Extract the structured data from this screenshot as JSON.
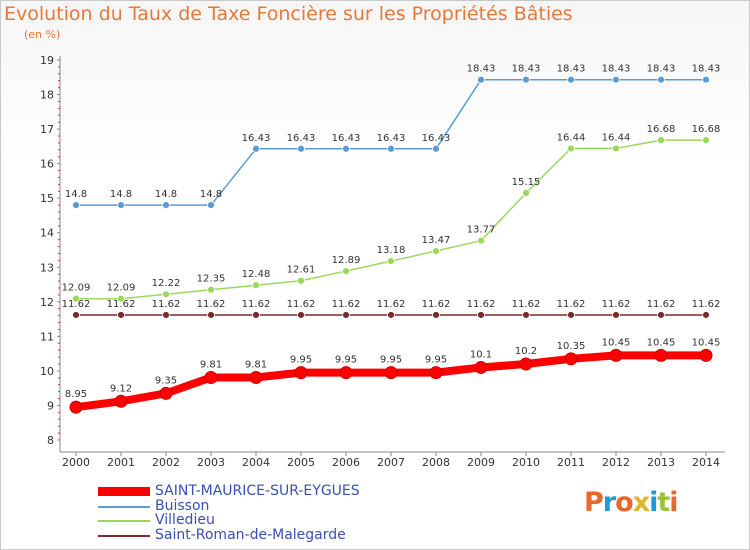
{
  "title": "Evolution du Taux de Taxe Foncière sur les Propriétés Bâties",
  "subtitle": "(en %)",
  "logo": {
    "text": "Proxiti",
    "colors": [
      "#e8672d",
      "#1e9ad6",
      "#e8672d",
      "#e0b52c",
      "#1e9ad6",
      "#9bc43c",
      "#e8672d"
    ]
  },
  "chart_data": {
    "type": "line",
    "title": "Evolution du Taux de Taxe Foncière sur les Propriétés Bâties",
    "ylabel": "(en %)",
    "x": [
      "2000",
      "2001",
      "2002",
      "2003",
      "2004",
      "2005",
      "2006",
      "2007",
      "2008",
      "2009",
      "2010",
      "2011",
      "2012",
      "2013",
      "2014"
    ],
    "ylim": [
      8,
      19
    ],
    "yticks": [
      "8",
      "9",
      "10",
      "11",
      "12",
      "13",
      "14",
      "15",
      "16",
      "17",
      "18",
      "19"
    ],
    "grid": false,
    "legend_position": "bottom-left",
    "series": [
      {
        "name": "SAINT-MAURICE-SUR-EYGUES",
        "color": "#ff0000",
        "width": 8,
        "values": [
          8.95,
          9.12,
          9.35,
          9.81,
          9.81,
          9.95,
          9.95,
          9.95,
          9.95,
          10.1,
          10.2,
          10.35,
          10.45,
          10.45,
          10.45
        ],
        "labels": [
          "8.95",
          "9.12",
          "9.35",
          "9.81",
          "9.81",
          "9.95",
          "9.95",
          "9.95",
          "9.95",
          "10.1",
          "10.2",
          "10.35",
          "10.45",
          "10.45",
          "10.45"
        ]
      },
      {
        "name": "Buisson",
        "color": "#5b9bd5",
        "width": 1.5,
        "values": [
          14.8,
          14.8,
          14.8,
          14.8,
          16.43,
          16.43,
          16.43,
          16.43,
          16.43,
          18.43,
          18.43,
          18.43,
          18.43,
          18.43,
          18.43
        ],
        "labels": [
          "14.8",
          "14.8",
          "14.8",
          "14.8",
          "16.43",
          "16.43",
          "16.43",
          "16.43",
          "16.43",
          "18.43",
          "18.43",
          "18.43",
          "18.43",
          "18.43",
          "18.43"
        ]
      },
      {
        "name": "Villedieu",
        "color": "#9ad85a",
        "width": 1.5,
        "values": [
          12.09,
          12.09,
          12.22,
          12.35,
          12.48,
          12.61,
          12.89,
          13.18,
          13.47,
          13.77,
          15.15,
          16.44,
          16.44,
          16.68,
          16.68
        ],
        "labels": [
          "12.09",
          "12.09",
          "12.22",
          "12.35",
          "12.48",
          "12.61",
          "12.89",
          "13.18",
          "13.47",
          "13.77",
          "15.15",
          "16.44",
          "16.44",
          "16.68",
          "16.68"
        ]
      },
      {
        "name": "Saint-Roman-de-Malegarde",
        "color": "#7a2a2a",
        "width": 1.5,
        "values": [
          11.62,
          11.62,
          11.62,
          11.62,
          11.62,
          11.62,
          11.62,
          11.62,
          11.62,
          11.62,
          11.62,
          11.62,
          11.62,
          11.62,
          11.62
        ],
        "labels": [
          "11.62",
          "11.62",
          "11.62",
          "11.62",
          "11.62",
          "11.62",
          "11.62",
          "11.62",
          "11.62",
          "11.62",
          "11.62",
          "11.62",
          "11.62",
          "11.62",
          "11.62"
        ]
      }
    ]
  }
}
